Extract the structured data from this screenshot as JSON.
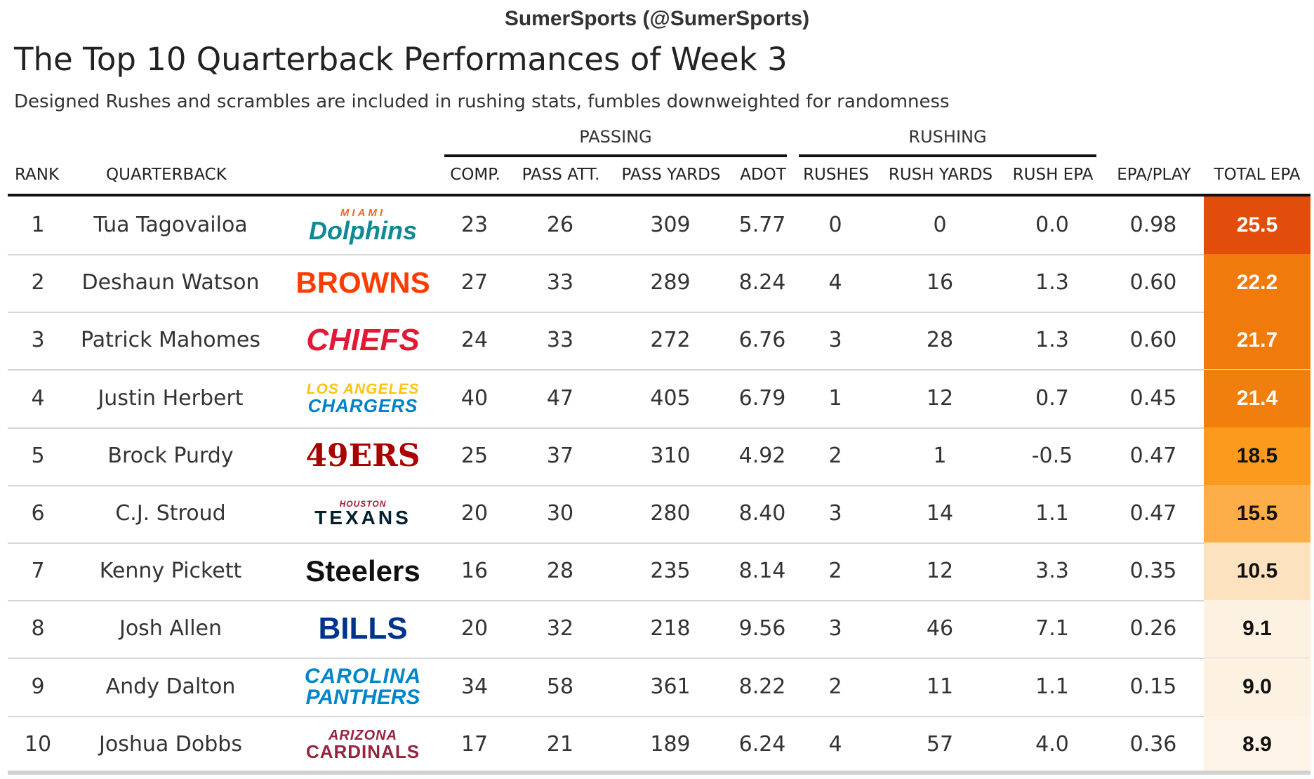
{
  "credit": "SumerSports (@SumerSports)",
  "title": "The Top 10 Quarterback Performances of Week 3",
  "subtitle": "Designed Rushes and scrambles are included in rushing stats, fumbles downweighted for randomness",
  "spanners": {
    "passing": "PASSING",
    "rushing": "RUSHING"
  },
  "headers": {
    "rank": "RANK",
    "quarterback": "QUARTERBACK",
    "comp": "COMP.",
    "pass_att": "PASS ATT.",
    "pass_yards": "PASS YARDS",
    "adot": "ADOT",
    "rushes": "RUSHES",
    "rush_yards": "RUSH YARDS",
    "rush_epa": "RUSH EPA",
    "epa_play": "EPA/PLAY",
    "total_epa": "TOTAL EPA"
  },
  "rows": [
    {
      "rank": "1",
      "qb": "Tua Tagovailoa",
      "logo_top": "MIAMI",
      "logo_main": "Dolphins",
      "logo_color": "#0d8a93",
      "logo_accent": "#f26a21",
      "comp": "23",
      "att": "26",
      "yds": "309",
      "adot": "5.77",
      "rushes": "0",
      "rush_yds": "0",
      "rush_epa": "0.0",
      "epa_play": "0.98",
      "total_epa": "25.5",
      "epa_bg": "#e34d0b",
      "epa_fg": "#ffffff"
    },
    {
      "rank": "2",
      "qb": "Deshaun Watson",
      "logo_top": "",
      "logo_main": "BROWNS",
      "logo_color": "#ff3c00",
      "logo_accent": "#ff3c00",
      "comp": "27",
      "att": "33",
      "yds": "289",
      "adot": "8.24",
      "rushes": "4",
      "rush_yds": "16",
      "rush_epa": "1.3",
      "epa_play": "0.60",
      "total_epa": "22.2",
      "epa_bg": "#f07a0c",
      "epa_fg": "#ffffff"
    },
    {
      "rank": "3",
      "qb": "Patrick Mahomes",
      "logo_top": "",
      "logo_main": "CHIEFS",
      "logo_color": "#e31837",
      "logo_accent": "#e31837",
      "comp": "24",
      "att": "33",
      "yds": "272",
      "adot": "6.76",
      "rushes": "3",
      "rush_yds": "28",
      "rush_epa": "1.3",
      "epa_play": "0.60",
      "total_epa": "21.7",
      "epa_bg": "#f07a0c",
      "epa_fg": "#ffffff"
    },
    {
      "rank": "4",
      "qb": "Justin Herbert",
      "logo_top": "LOS ANGELES",
      "logo_main": "CHARGERS",
      "logo_color": "#0080c6",
      "logo_accent": "#ffc20e",
      "comp": "40",
      "att": "47",
      "yds": "405",
      "adot": "6.79",
      "rushes": "1",
      "rush_yds": "12",
      "rush_epa": "0.7",
      "epa_play": "0.45",
      "total_epa": "21.4",
      "epa_bg": "#f07f0e",
      "epa_fg": "#ffffff"
    },
    {
      "rank": "5",
      "qb": "Brock Purdy",
      "logo_top": "",
      "logo_main": "49ERS",
      "logo_color": "#aa0000",
      "logo_accent": "#aa0000",
      "comp": "25",
      "att": "37",
      "yds": "310",
      "adot": "4.92",
      "rushes": "2",
      "rush_yds": "1",
      "rush_epa": "-0.5",
      "epa_play": "0.47",
      "total_epa": "18.5",
      "epa_bg": "#fb9a1c",
      "epa_fg": "#111111"
    },
    {
      "rank": "6",
      "qb": "C.J. Stroud",
      "logo_top": "HOUSTON",
      "logo_main": "TEXANS",
      "logo_color": "#03202f",
      "logo_accent": "#a71930",
      "comp": "20",
      "att": "30",
      "yds": "280",
      "adot": "8.40",
      "rushes": "3",
      "rush_yds": "14",
      "rush_epa": "1.1",
      "epa_play": "0.47",
      "total_epa": "15.5",
      "epa_bg": "#fdae48",
      "epa_fg": "#111111"
    },
    {
      "rank": "7",
      "qb": "Kenny Pickett",
      "logo_top": "",
      "logo_main": "Steelers",
      "logo_color": "#101010",
      "logo_accent": "#101010",
      "comp": "16",
      "att": "28",
      "yds": "235",
      "adot": "8.14",
      "rushes": "2",
      "rush_yds": "12",
      "rush_epa": "3.3",
      "epa_play": "0.35",
      "total_epa": "10.5",
      "epa_bg": "#fde2c0",
      "epa_fg": "#111111"
    },
    {
      "rank": "8",
      "qb": "Josh Allen",
      "logo_top": "",
      "logo_main": "BILLS",
      "logo_color": "#00338d",
      "logo_accent": "#00338d",
      "comp": "20",
      "att": "32",
      "yds": "218",
      "adot": "9.56",
      "rushes": "3",
      "rush_yds": "46",
      "rush_epa": "7.1",
      "epa_play": "0.26",
      "total_epa": "9.1",
      "epa_bg": "#fdf1e2",
      "epa_fg": "#111111"
    },
    {
      "rank": "9",
      "qb": "Andy Dalton",
      "logo_top": "CAROLINA",
      "logo_main": "PANTHERS",
      "logo_color": "#0085ca",
      "logo_accent": "#0085ca",
      "comp": "34",
      "att": "58",
      "yds": "361",
      "adot": "8.22",
      "rushes": "2",
      "rush_yds": "11",
      "rush_epa": "1.1",
      "epa_play": "0.15",
      "total_epa": "9.0",
      "epa_bg": "#fdf1e2",
      "epa_fg": "#111111"
    },
    {
      "rank": "10",
      "qb": "Joshua Dobbs",
      "logo_top": "ARIZONA",
      "logo_main": "CARDINALS",
      "logo_color": "#97233f",
      "logo_accent": "#97233f",
      "comp": "17",
      "att": "21",
      "yds": "189",
      "adot": "6.24",
      "rushes": "4",
      "rush_yds": "57",
      "rush_epa": "4.0",
      "epa_play": "0.36",
      "total_epa": "8.9",
      "epa_bg": "#fdf3e6",
      "epa_fg": "#111111"
    }
  ]
}
